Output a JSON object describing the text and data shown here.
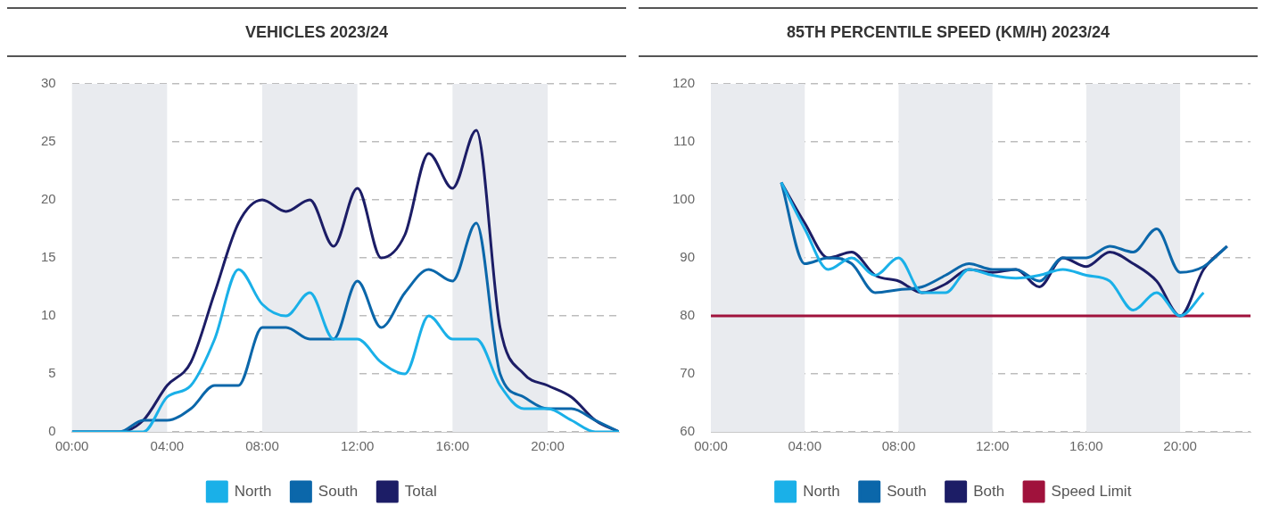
{
  "chart_data": [
    {
      "type": "line",
      "title": "VEHICLES 2023/24",
      "x": [
        0,
        1,
        2,
        3,
        4,
        5,
        6,
        7,
        8,
        9,
        10,
        11,
        12,
        13,
        14,
        15,
        16,
        17,
        18,
        19,
        20,
        21,
        22,
        23
      ],
      "xlim": [
        0,
        23
      ],
      "xticks": [
        {
          "value": 0,
          "label": "00:00"
        },
        {
          "value": 4,
          "label": "04:00"
        },
        {
          "value": 8,
          "label": "08:00"
        },
        {
          "value": 12,
          "label": "12:00"
        },
        {
          "value": 16,
          "label": "16:00"
        },
        {
          "value": 20,
          "label": "20:00"
        }
      ],
      "ylim": [
        0,
        30
      ],
      "yticks": [
        0,
        5,
        10,
        15,
        20,
        25,
        30
      ],
      "grid": "y",
      "legend": "bottom",
      "bands": [
        {
          "axis": "x",
          "from": 0,
          "to": 4,
          "color": "#e9ebef"
        },
        {
          "axis": "x",
          "from": 8,
          "to": 12,
          "color": "#e9ebef"
        },
        {
          "axis": "x",
          "from": 16,
          "to": 20,
          "color": "#e9ebef"
        }
      ],
      "series": [
        {
          "name": "North",
          "color": "#1ab0e8",
          "values": [
            0,
            0,
            0,
            0,
            3,
            4,
            8,
            14,
            11,
            10,
            12,
            8,
            8,
            6,
            5,
            10,
            8,
            8,
            4,
            2,
            2,
            1,
            0,
            0
          ]
        },
        {
          "name": "South",
          "color": "#0b67aa",
          "values": [
            0,
            0,
            0,
            1,
            1,
            2,
            4,
            4,
            9,
            9,
            8,
            8,
            13,
            9,
            12,
            14,
            13,
            18,
            5,
            3,
            2,
            2,
            1,
            0
          ]
        },
        {
          "name": "Total",
          "color": "#1c1d66",
          "values": [
            0,
            0,
            0,
            1,
            4,
            6,
            12,
            18,
            20,
            19,
            20,
            16,
            21,
            15,
            17,
            24,
            21,
            26,
            9,
            5,
            4,
            3,
            1,
            0
          ]
        }
      ]
    },
    {
      "type": "line",
      "title": "85TH PERCENTILE SPEED (KM/H) 2023/24",
      "x": [
        0,
        1,
        2,
        3,
        4,
        5,
        6,
        7,
        8,
        9,
        10,
        11,
        12,
        13,
        14,
        15,
        16,
        17,
        18,
        19,
        20,
        21,
        22,
        23
      ],
      "xlim": [
        0,
        23
      ],
      "xticks": [
        {
          "value": 0,
          "label": "00:00"
        },
        {
          "value": 4,
          "label": "04:00"
        },
        {
          "value": 8,
          "label": "08:00"
        },
        {
          "value": 12,
          "label": "12:00"
        },
        {
          "value": 16,
          "label": "16:00"
        },
        {
          "value": 20,
          "label": "20:00"
        }
      ],
      "ylim": [
        60,
        120
      ],
      "yticks": [
        60,
        70,
        80,
        90,
        100,
        110,
        120
      ],
      "grid": "y",
      "legend": "bottom",
      "bands": [
        {
          "axis": "x",
          "from": 0,
          "to": 4,
          "color": "#e9ebef"
        },
        {
          "axis": "x",
          "from": 8,
          "to": 12,
          "color": "#e9ebef"
        },
        {
          "axis": "x",
          "from": 16,
          "to": 20,
          "color": "#e9ebef"
        }
      ],
      "series": [
        {
          "name": "North",
          "color": "#1ab0e8",
          "values": [
            null,
            null,
            null,
            103,
            95,
            88,
            90,
            87,
            90,
            84,
            84,
            88,
            87,
            86.5,
            87,
            88,
            87,
            86,
            81,
            84,
            80,
            84,
            null,
            null
          ]
        },
        {
          "name": "South",
          "color": "#0b67aa",
          "values": [
            null,
            null,
            null,
            103,
            89,
            90,
            89,
            84,
            84.5,
            85,
            87,
            89,
            88,
            88,
            86,
            90,
            90,
            92,
            91,
            95,
            87.5,
            88.5,
            92,
            null
          ]
        },
        {
          "name": "Both",
          "color": "#1c1d66",
          "values": [
            null,
            null,
            null,
            103,
            96,
            90,
            91,
            87,
            86,
            84,
            85.5,
            88,
            87.5,
            88,
            85,
            90,
            88.5,
            91,
            89,
            86,
            80,
            88,
            92,
            null
          ]
        },
        {
          "name": "Speed Limit",
          "color": "#a0123c",
          "values": [
            80,
            80,
            80,
            80,
            80,
            80,
            80,
            80,
            80,
            80,
            80,
            80,
            80,
            80,
            80,
            80,
            80,
            80,
            80,
            80,
            80,
            80,
            80,
            80
          ]
        }
      ]
    }
  ]
}
